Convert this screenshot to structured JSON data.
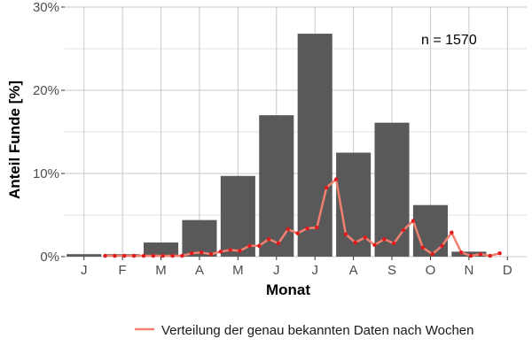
{
  "chart_data": {
    "type": "bar",
    "xlabel": "Monat",
    "ylabel": "Anteil Funde [%]",
    "annotation": "n = 1570",
    "ylim": [
      0,
      30
    ],
    "yticks": [
      0,
      10,
      20,
      30
    ],
    "ytick_labels": [
      "0%",
      "10%",
      "20%",
      "30%"
    ],
    "categories": [
      "J",
      "F",
      "M",
      "A",
      "M",
      "J",
      "J",
      "A",
      "S",
      "O",
      "N",
      "D"
    ],
    "grid": true,
    "legend_position": "bottom",
    "colors": {
      "bars": "#595959",
      "line": "#f08070",
      "points": "#e31a1c",
      "grid": "#c8c8c8"
    },
    "series": [
      {
        "kind": "bar",
        "values": [
          0.3,
          0.3,
          1.7,
          4.4,
          9.7,
          17.0,
          26.8,
          12.5,
          16.1,
          6.2,
          0.6,
          0.0
        ]
      },
      {
        "kind": "line",
        "name": "Verteilung der genau bekannten Daten nach Wochen",
        "x": [
          0.55,
          0.8,
          1.05,
          1.3,
          1.55,
          1.8,
          2.05,
          2.3,
          2.55,
          2.8,
          3.05,
          3.3,
          3.55,
          3.8,
          4.05,
          4.3,
          4.55,
          4.8,
          5.05,
          5.3,
          5.55,
          5.8,
          6.05,
          6.3,
          6.55,
          6.8,
          7.05,
          7.3,
          7.55,
          7.8,
          8.05,
          8.3,
          8.55,
          8.8,
          9.05,
          9.3,
          9.55,
          9.8,
          10.05,
          10.3,
          10.55,
          10.8
        ],
        "values": [
          0.1,
          0.1,
          0.1,
          0.1,
          0.1,
          0.1,
          0.1,
          0.1,
          0.1,
          0.4,
          0.5,
          0.3,
          0.6,
          0.8,
          0.7,
          1.3,
          1.3,
          2.1,
          1.6,
          3.3,
          2.8,
          3.4,
          3.5,
          8.3,
          9.3,
          2.7,
          1.7,
          2.3,
          1.4,
          2.1,
          1.6,
          3.2,
          4.3,
          1.1,
          0.3,
          1.3,
          2.9,
          0.5,
          0.1,
          0.3,
          0.1,
          0.4
        ]
      }
    ]
  }
}
